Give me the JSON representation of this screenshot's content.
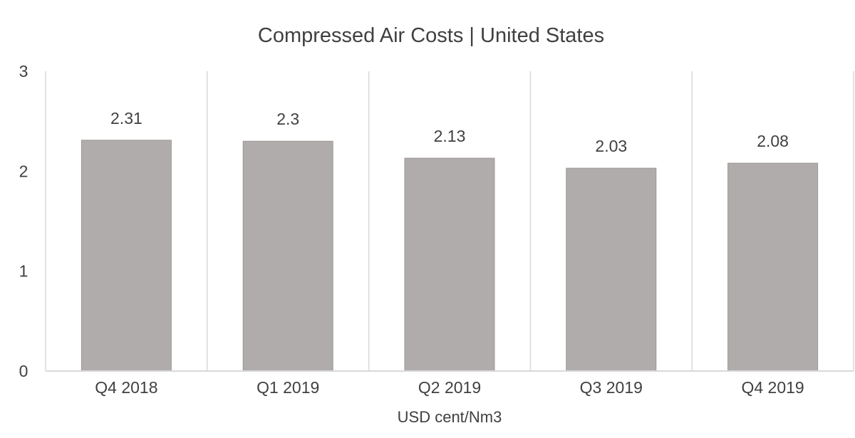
{
  "chart_data": {
    "type": "bar",
    "title": "Compressed Air Costs | United States",
    "xlabel": "USD cent/Nm3",
    "ylabel": "",
    "categories": [
      "Q4 2018",
      "Q1 2019",
      "Q2 2019",
      "Q3 2019",
      "Q4 2019"
    ],
    "values": [
      2.31,
      2.3,
      2.13,
      2.03,
      2.08
    ],
    "data_labels": [
      "2.31",
      "2.3",
      "2.13",
      "2.03",
      "2.08"
    ],
    "ylim": [
      0,
      3
    ],
    "yticks": [
      0,
      1,
      2,
      3
    ],
    "ytick_labels": [
      "0",
      "1",
      "2",
      "3"
    ],
    "grid": "vertical separators between categories",
    "legend": "none",
    "colors": {
      "bar_fill": "#b0acab",
      "bar_stroke": "#9c9897",
      "grid": "#d9d9d9",
      "text": "#404040"
    }
  }
}
